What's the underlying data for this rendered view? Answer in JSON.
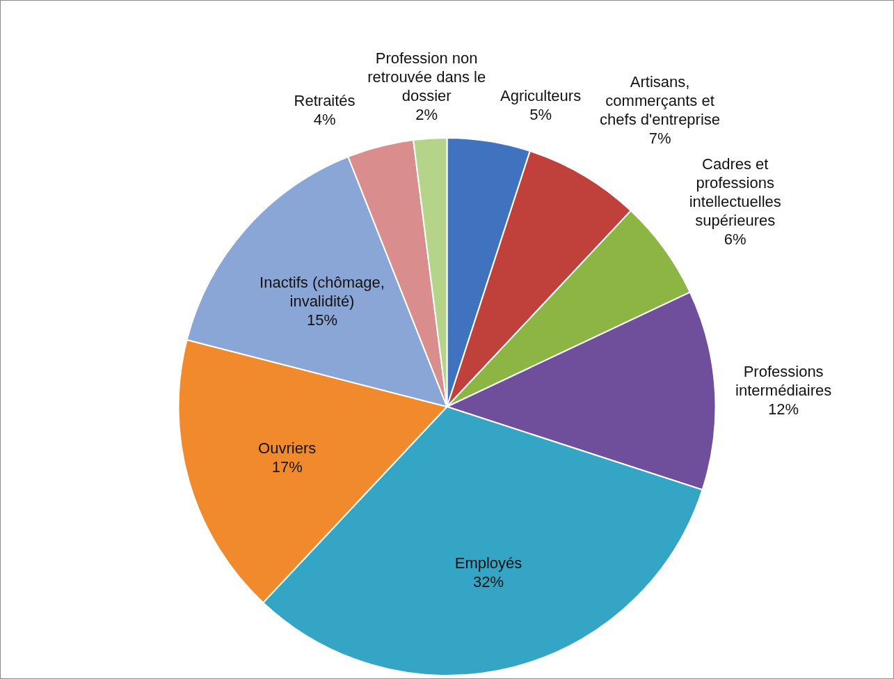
{
  "chart_data": {
    "type": "pie",
    "categories": [
      "Agriculteurs",
      "Artisans, commerçants et chefs d'entreprise",
      "Cadres et professions intellectuelles supérieures",
      "Professions intermédiaires",
      "Employés",
      "Ouvriers",
      "Inactifs (chômage, invalidité)",
      "Retraités",
      "Profession non retrouvée dans le dossier"
    ],
    "values": [
      5,
      7,
      6,
      12,
      32,
      17,
      15,
      4,
      2
    ],
    "value_labels": [
      "5%",
      "7%",
      "6%",
      "12%",
      "32%",
      "17%",
      "15%",
      "4%",
      "2%"
    ],
    "colors": [
      "#3f73bf",
      "#c0403c",
      "#8db543",
      "#6f4f9c",
      "#35a5c6",
      "#f18a2c",
      "#8aa6d6",
      "#d98d8d",
      "#b5d48a"
    ],
    "legend": false
  }
}
